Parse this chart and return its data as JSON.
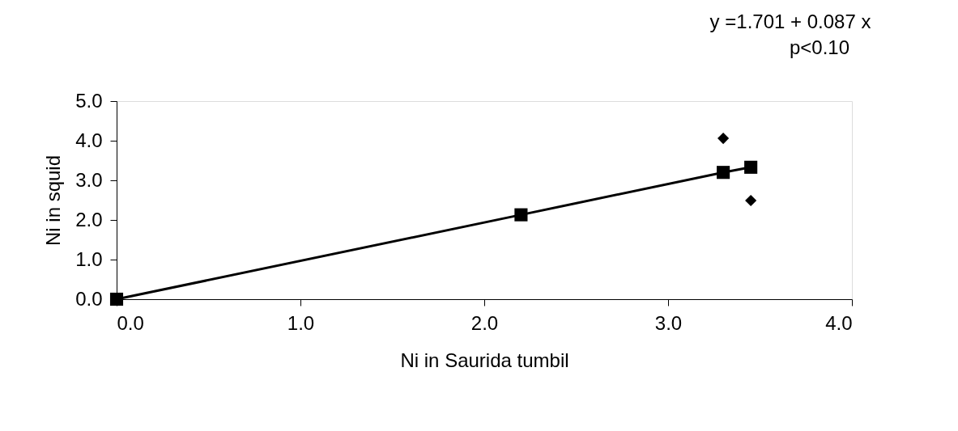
{
  "chart_data": {
    "type": "scatter",
    "xlabel": "Ni in Saurida tumbil",
    "ylabel": "Ni in squid",
    "annotations": [
      "y =1.701 + 0.087 x",
      "p<0.10"
    ],
    "series": [
      {
        "type": "line",
        "marker": "square",
        "color": "#000000",
        "x": [
          0.0,
          2.2,
          3.3,
          3.45
        ],
        "values": [
          0.0,
          2.13,
          3.2,
          3.33
        ]
      },
      {
        "type": "scatter",
        "marker": "diamond",
        "color": "#000000",
        "x": [
          3.3,
          3.45
        ],
        "values": [
          4.06,
          2.49
        ]
      }
    ],
    "xlim": [
      0.0,
      4.0
    ],
    "ylim": [
      0.0,
      5.0
    ],
    "xticks": [
      {
        "value": 0,
        "label": "0.0"
      },
      {
        "value": 1,
        "label": "1.0"
      },
      {
        "value": 2,
        "label": "2.0"
      },
      {
        "value": 3,
        "label": "3.0"
      },
      {
        "value": 4,
        "label": "4.0"
      }
    ],
    "yticks": [
      {
        "value": 0,
        "label": "0.0"
      },
      {
        "value": 1,
        "label": "1.0"
      },
      {
        "value": 2,
        "label": "2.0"
      },
      {
        "value": 3,
        "label": "3.0"
      },
      {
        "value": 4,
        "label": "4.0"
      },
      {
        "value": 5,
        "label": "5.0"
      }
    ],
    "grid": false
  }
}
